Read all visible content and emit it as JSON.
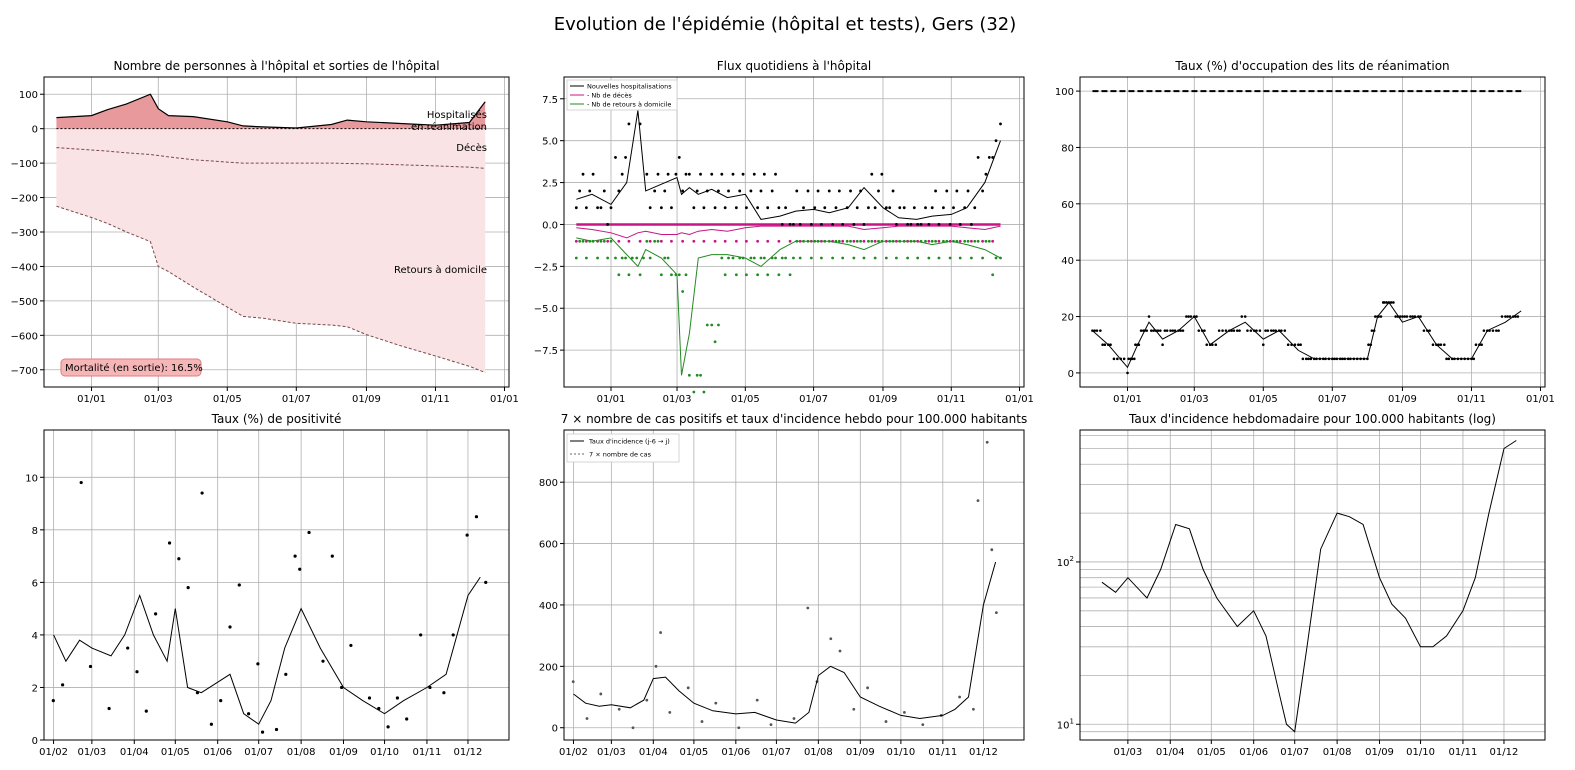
{
  "figure_title": "Evolution de l'épidémie (hôpital et tests), Gers (32)",
  "chart_data": [
    {
      "id": "p1",
      "type": "area",
      "title": "Nombre de personnes à l'hôpital et sorties de l'hôpital",
      "xlabel": "",
      "ylabel": "",
      "ylim": [
        -750,
        150
      ],
      "x_ticks": [
        "01/01",
        "01/03",
        "01/05",
        "01/07",
        "01/09",
        "01/11",
        "01/01"
      ],
      "y_ticks": [
        100,
        0,
        -100,
        -200,
        -300,
        -400,
        -500,
        -600,
        -700
      ],
      "y_tick_labels": [
        "100",
        "0",
        "−100",
        "−200",
        "−300",
        "−400",
        "−500",
        "−600",
        "−700"
      ],
      "grid": true,
      "x_dates": [
        "2020-12-01",
        "2021-01-01",
        "2021-01-15",
        "2021-02-01",
        "2021-02-22",
        "2021-03-01",
        "2021-03-10",
        "2021-04-01",
        "2021-05-01",
        "2021-05-15",
        "2021-06-01",
        "2021-07-01",
        "2021-08-01",
        "2021-08-15",
        "2021-09-01",
        "2021-10-01",
        "2021-11-01",
        "2021-12-01",
        "2021-12-15"
      ],
      "series": [
        {
          "role": "hospitalises",
          "values": [
            32,
            38,
            55,
            72,
            100,
            58,
            38,
            35,
            20,
            8,
            5,
            2,
            12,
            25,
            20,
            15,
            10,
            18,
            78
          ]
        },
        {
          "role": "deces",
          "values": [
            -55,
            -62,
            -65,
            -70,
            -75,
            -78,
            -82,
            -90,
            -97,
            -100,
            -100,
            -100,
            -100,
            -101,
            -102,
            -105,
            -108,
            -112,
            -115
          ]
        },
        {
          "role": "retours",
          "values": [
            -225,
            -258,
            -275,
            -300,
            -328,
            -400,
            -415,
            -460,
            -518,
            -545,
            -550,
            -565,
            -570,
            -575,
            -598,
            -630,
            -660,
            -690,
            -708
          ]
        }
      ],
      "annotations": {
        "hospitalises_line1": "Hospitalisés",
        "hospitalises_line2": "en réanimation",
        "deces": "Décès",
        "retours": "Retours à domicile"
      },
      "mortality_label": "Mortalité (en sortie): 16.5%",
      "colors": {
        "hospitalises": "#e8999b",
        "retours": "#f9e3e4",
        "line": "#000000",
        "dashed": "#7a4a4c"
      }
    },
    {
      "id": "p2",
      "type": "line",
      "title": "Flux quotidiens à l'hôpital",
      "xlabel": "",
      "ylabel": "",
      "ylim": [
        -9.7,
        8.8
      ],
      "x_ticks": [
        "01/01",
        "01/03",
        "01/05",
        "01/07",
        "01/09",
        "01/11",
        "01/01"
      ],
      "y_ticks": [
        7.5,
        5.0,
        2.5,
        0.0,
        -2.5,
        -5.0,
        -7.5
      ],
      "y_tick_labels": [
        "7.5",
        "5.0",
        "2.5",
        "0.0",
        "−2.5",
        "−5.0",
        "−7.5"
      ],
      "grid": true,
      "legend": [
        "Nouvelles hospitalisations",
        "- Nb de décès",
        "- Nb de retours à domicile"
      ],
      "legend_position": "upper-left",
      "x_dates": [
        "2020-12-01",
        "2020-12-15",
        "2021-01-01",
        "2021-01-15",
        "2021-01-25",
        "2021-02-01",
        "2021-02-15",
        "2021-03-01",
        "2021-03-05",
        "2021-03-12",
        "2021-03-20",
        "2021-04-01",
        "2021-04-15",
        "2021-05-01",
        "2021-05-15",
        "2021-06-01",
        "2021-06-15",
        "2021-07-01",
        "2021-07-15",
        "2021-08-01",
        "2021-08-15",
        "2021-09-01",
        "2021-09-15",
        "2021-10-01",
        "2021-10-15",
        "2021-11-01",
        "2021-11-15",
        "2021-12-01",
        "2021-12-15"
      ],
      "series": [
        {
          "name": "Nouvelles hospitalisations",
          "values": [
            1.5,
            1.8,
            1.2,
            2.5,
            6.8,
            2.0,
            2.4,
            2.8,
            1.8,
            2.2,
            1.8,
            2.1,
            1.6,
            1.8,
            0.3,
            0.5,
            0.8,
            0.9,
            0.7,
            1.0,
            2.2,
            1.0,
            0.4,
            0.3,
            0.5,
            0.6,
            1.0,
            2.5,
            5.0
          ],
          "color": "#000000"
        },
        {
          "name": "- Nb de décès",
          "values": [
            -0.2,
            -0.3,
            -0.5,
            -0.8,
            -0.5,
            -0.4,
            -0.6,
            -0.6,
            -0.5,
            -0.6,
            -0.4,
            -0.3,
            -0.4,
            -0.2,
            -0.1,
            -0.1,
            -0.1,
            -0.1,
            -0.1,
            -0.1,
            -0.3,
            -0.2,
            -0.1,
            -0.1,
            -0.1,
            -0.1,
            -0.2,
            -0.3,
            -0.1
          ],
          "color": "#c71585"
        },
        {
          "name": "- Nb de retours à domicile",
          "values": [
            -0.8,
            -1.0,
            -0.8,
            -1.8,
            -2.5,
            -1.5,
            -2.0,
            -3.0,
            -9.0,
            -6.5,
            -2.0,
            -1.8,
            -1.8,
            -2.0,
            -2.5,
            -1.5,
            -1.0,
            -1.0,
            -1.0,
            -1.2,
            -1.5,
            -1.0,
            -1.0,
            -1.0,
            -1.2,
            -1.0,
            -1.2,
            -1.5,
            -2.0
          ],
          "color": "#228b22"
        }
      ]
    },
    {
      "id": "p3",
      "type": "line",
      "title": "Taux (%) d'occupation des lits de réanimation",
      "xlabel": "",
      "ylabel": "",
      "ylim": [
        -5,
        105
      ],
      "x_ticks": [
        "01/01",
        "01/03",
        "01/05",
        "01/07",
        "01/09",
        "01/11",
        "01/01"
      ],
      "y_ticks": [
        100,
        80,
        60,
        40,
        20,
        0
      ],
      "y_tick_labels": [
        "100",
        "80",
        "60",
        "40",
        "20",
        "0"
      ],
      "grid": true,
      "reference_value": 100,
      "x_dates": [
        "2020-12-01",
        "2020-12-15",
        "2021-01-01",
        "2021-01-10",
        "2021-01-20",
        "2021-02-01",
        "2021-02-15",
        "2021-03-01",
        "2021-03-15",
        "2021-04-01",
        "2021-04-15",
        "2021-05-01",
        "2021-05-15",
        "2021-06-01",
        "2021-06-15",
        "2021-07-01",
        "2021-07-15",
        "2021-08-01",
        "2021-08-10",
        "2021-08-20",
        "2021-09-01",
        "2021-09-15",
        "2021-10-01",
        "2021-10-15",
        "2021-11-01",
        "2021-11-15",
        "2021-12-01",
        "2021-12-15"
      ],
      "values": [
        15,
        10,
        2,
        10,
        18,
        12,
        15,
        20,
        10,
        15,
        18,
        12,
        15,
        8,
        5,
        5,
        5,
        5,
        20,
        25,
        18,
        20,
        10,
        5,
        5,
        15,
        18,
        22
      ]
    },
    {
      "id": "p4",
      "type": "scatter",
      "title": "Taux (%) de positivité",
      "xlabel": "",
      "ylabel": "",
      "ylim": [
        0,
        11.8
      ],
      "x_ticks": [
        "01/02",
        "01/03",
        "01/04",
        "01/05",
        "01/06",
        "01/07",
        "01/08",
        "01/09",
        "01/10",
        "01/11",
        "01/12"
      ],
      "y_ticks": [
        0,
        2,
        4,
        6,
        8,
        10
      ],
      "y_tick_labels": [
        "0",
        "2",
        "4",
        "6",
        "8",
        "10"
      ],
      "grid": true,
      "x_dates": [
        "2021-02-01",
        "2021-02-10",
        "2021-02-20",
        "2021-03-01",
        "2021-03-15",
        "2021-03-25",
        "2021-04-05",
        "2021-04-15",
        "2021-04-25",
        "2021-05-01",
        "2021-05-10",
        "2021-05-20",
        "2021-06-01",
        "2021-06-10",
        "2021-06-20",
        "2021-07-01",
        "2021-07-10",
        "2021-07-20",
        "2021-08-01",
        "2021-08-15",
        "2021-09-01",
        "2021-09-15",
        "2021-10-01",
        "2021-10-15",
        "2021-11-01",
        "2021-11-15",
        "2021-12-01",
        "2021-12-10"
      ],
      "values": [
        4.0,
        3.0,
        3.8,
        3.5,
        3.2,
        4.0,
        5.5,
        4.0,
        3.0,
        5.0,
        2.0,
        1.8,
        2.2,
        2.5,
        1.0,
        0.6,
        1.5,
        3.5,
        5.0,
        3.5,
        2.0,
        1.5,
        1.0,
        1.5,
        2.0,
        2.5,
        5.5,
        6.2
      ],
      "scatter_points": [
        [
          0.02,
          1.5
        ],
        [
          0.04,
          2.1
        ],
        [
          0.08,
          9.8
        ],
        [
          0.1,
          2.8
        ],
        [
          0.14,
          1.2
        ],
        [
          0.18,
          3.5
        ],
        [
          0.2,
          2.6
        ],
        [
          0.22,
          1.1
        ],
        [
          0.24,
          4.8
        ],
        [
          0.27,
          7.5
        ],
        [
          0.29,
          6.9
        ],
        [
          0.31,
          5.8
        ],
        [
          0.33,
          1.8
        ],
        [
          0.34,
          9.4
        ],
        [
          0.36,
          0.6
        ],
        [
          0.38,
          1.5
        ],
        [
          0.4,
          4.3
        ],
        [
          0.42,
          5.9
        ],
        [
          0.44,
          1.0
        ],
        [
          0.46,
          2.9
        ],
        [
          0.47,
          0.3
        ],
        [
          0.5,
          0.4
        ],
        [
          0.52,
          2.5
        ],
        [
          0.54,
          7.0
        ],
        [
          0.55,
          6.5
        ],
        [
          0.57,
          7.9
        ],
        [
          0.6,
          3.0
        ],
        [
          0.62,
          7.0
        ],
        [
          0.64,
          2.0
        ],
        [
          0.66,
          3.6
        ],
        [
          0.7,
          1.6
        ],
        [
          0.72,
          1.2
        ],
        [
          0.74,
          0.5
        ],
        [
          0.76,
          1.6
        ],
        [
          0.78,
          0.8
        ],
        [
          0.81,
          4.0
        ],
        [
          0.83,
          2.0
        ],
        [
          0.86,
          1.8
        ],
        [
          0.88,
          4.0
        ],
        [
          0.91,
          7.8
        ],
        [
          0.93,
          8.5
        ],
        [
          0.95,
          6.0
        ]
      ]
    },
    {
      "id": "p5",
      "type": "line",
      "title": "7 × nombre de cas positifs et taux d'incidence hebdo pour 100.000 habitants",
      "xlabel": "",
      "ylabel": "",
      "ylim": [
        -40,
        970
      ],
      "x_ticks": [
        "01/02",
        "01/03",
        "01/04",
        "01/05",
        "01/06",
        "01/07",
        "01/08",
        "01/09",
        "01/10",
        "01/11",
        "01/12"
      ],
      "y_ticks": [
        0,
        200,
        400,
        600,
        800
      ],
      "y_tick_labels": [
        "0",
        "200",
        "400",
        "600",
        "800"
      ],
      "grid": true,
      "legend": [
        "Taux d'incidence (j-6 → j)",
        "7 × nombre de cas"
      ],
      "legend_position": "upper-left",
      "x_dates": [
        "2021-02-01",
        "2021-02-10",
        "2021-02-20",
        "2021-03-01",
        "2021-03-15",
        "2021-03-25",
        "2021-04-01",
        "2021-04-10",
        "2021-04-20",
        "2021-05-01",
        "2021-05-15",
        "2021-06-01",
        "2021-06-15",
        "2021-07-01",
        "2021-07-15",
        "2021-07-25",
        "2021-08-01",
        "2021-08-10",
        "2021-08-20",
        "2021-09-01",
        "2021-09-15",
        "2021-10-01",
        "2021-10-15",
        "2021-11-01",
        "2021-11-10",
        "2021-11-20",
        "2021-12-01",
        "2021-12-10"
      ],
      "values": [
        110,
        80,
        70,
        75,
        65,
        90,
        160,
        165,
        120,
        80,
        55,
        45,
        50,
        25,
        15,
        50,
        170,
        200,
        180,
        100,
        70,
        40,
        30,
        40,
        60,
        100,
        400,
        540
      ],
      "scatter_points": [
        [
          0.02,
          150
        ],
        [
          0.05,
          30
        ],
        [
          0.08,
          110
        ],
        [
          0.12,
          60
        ],
        [
          0.15,
          0
        ],
        [
          0.18,
          90
        ],
        [
          0.2,
          200
        ],
        [
          0.21,
          310
        ],
        [
          0.23,
          50
        ],
        [
          0.27,
          130
        ],
        [
          0.3,
          20
        ],
        [
          0.33,
          80
        ],
        [
          0.38,
          0
        ],
        [
          0.42,
          90
        ],
        [
          0.45,
          10
        ],
        [
          0.5,
          30
        ],
        [
          0.53,
          390
        ],
        [
          0.55,
          150
        ],
        [
          0.58,
          290
        ],
        [
          0.6,
          250
        ],
        [
          0.63,
          60
        ],
        [
          0.66,
          130
        ],
        [
          0.7,
          20
        ],
        [
          0.74,
          50
        ],
        [
          0.78,
          10
        ],
        [
          0.82,
          40
        ],
        [
          0.86,
          100
        ],
        [
          0.89,
          60
        ],
        [
          0.9,
          740
        ],
        [
          0.92,
          930
        ],
        [
          0.93,
          580
        ],
        [
          0.94,
          375
        ]
      ]
    },
    {
      "id": "p6",
      "type": "line",
      "title": "Taux d'incidence hebdomadaire pour 100.000 habitants (log)",
      "xlabel": "",
      "ylabel": "",
      "log_scale": true,
      "ylim": [
        8,
        650
      ],
      "x_ticks": [
        "01/03",
        "01/04",
        "01/05",
        "01/06",
        "01/07",
        "01/08",
        "01/09",
        "01/10",
        "01/11",
        "01/12"
      ],
      "y_ticks": [
        10,
        100
      ],
      "y_tick_labels_mant": [
        "10",
        "10"
      ],
      "y_tick_labels_exp": [
        "1",
        "2"
      ],
      "grid": true,
      "x_dates": [
        "2021-02-10",
        "2021-02-20",
        "2021-03-01",
        "2021-03-15",
        "2021-03-25",
        "2021-04-05",
        "2021-04-15",
        "2021-04-25",
        "2021-05-05",
        "2021-05-20",
        "2021-06-01",
        "2021-06-10",
        "2021-06-20",
        "2021-06-25",
        "2021-07-01",
        "2021-07-10",
        "2021-07-20",
        "2021-08-01",
        "2021-08-10",
        "2021-08-20",
        "2021-09-01",
        "2021-09-10",
        "2021-09-20",
        "2021-10-01",
        "2021-10-10",
        "2021-10-20",
        "2021-11-01",
        "2021-11-10",
        "2021-11-20",
        "2021-12-01",
        "2021-12-10"
      ],
      "values": [
        75,
        65,
        80,
        60,
        90,
        170,
        160,
        90,
        60,
        40,
        50,
        35,
        15,
        10,
        9,
        30,
        120,
        200,
        190,
        170,
        80,
        55,
        45,
        30,
        30,
        35,
        50,
        80,
        200,
        500,
        560
      ]
    }
  ]
}
